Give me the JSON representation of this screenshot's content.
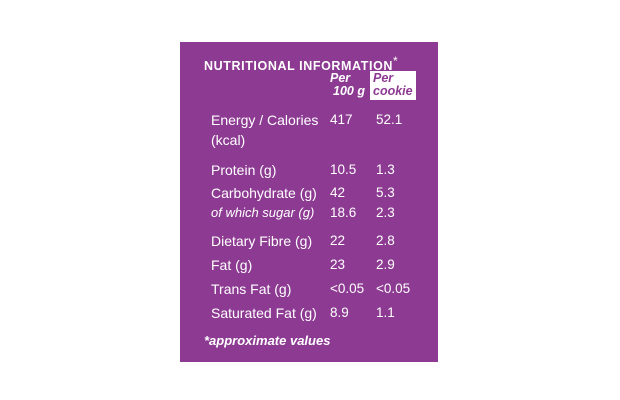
{
  "header": {
    "title": "NUTRITIONAL INFORMATION",
    "title_mark": "*"
  },
  "columns": [
    [
      "Per",
      "100 g"
    ],
    [
      "Per",
      "cookie"
    ]
  ],
  "rows": [
    {
      "label": "Energy / Calories (kcal)",
      "per_100g": "417",
      "per_cookie": "52.1"
    },
    {
      "label": "Protein (g)",
      "per_100g": "10.5",
      "per_cookie": "1.3"
    },
    {
      "label": "Carbohydrate (g)",
      "per_100g": "42",
      "per_cookie": "5.3"
    },
    {
      "label": "of which sugar (g)",
      "per_100g": "18.6",
      "per_cookie": "2.3",
      "italic": true
    },
    {
      "label": "Dietary Fibre (g)",
      "per_100g": "22",
      "per_cookie": "2.8"
    },
    {
      "label": "Fat (g)",
      "per_100g": "23",
      "per_cookie": "2.9"
    },
    {
      "label": "Trans Fat (g)",
      "per_100g": "<0.05",
      "per_cookie": "<0.05"
    },
    {
      "label": "Saturated Fat (g)",
      "per_100g": "8.9",
      "per_cookie": "1.1"
    }
  ],
  "footnote": "*approximate values"
}
